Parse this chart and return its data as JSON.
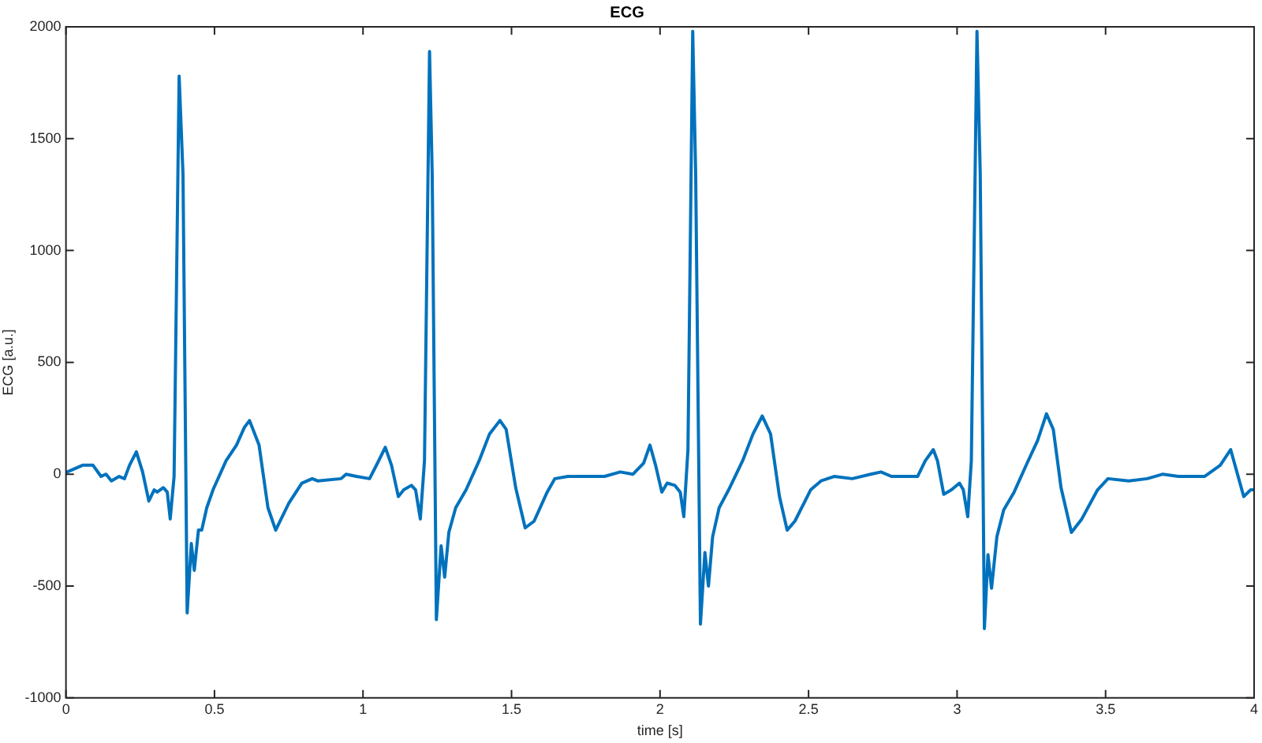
{
  "chart_data": {
    "type": "line",
    "title": "ECG",
    "xlabel": "time [s]",
    "ylabel": "ECG [a.u.]",
    "xlim": [
      0,
      4
    ],
    "xticks": [
      0,
      0.5,
      1,
      1.5,
      2,
      2.5,
      3,
      3.5,
      4
    ],
    "ylim": [
      -1000,
      2000
    ],
    "yticks": [
      -1000,
      -500,
      0,
      500,
      1000,
      1500,
      2000
    ],
    "grid": false,
    "legend": false,
    "marker": "none",
    "line_style": "solid",
    "series": [
      {
        "color": "#0072bd",
        "x": [
          0.004,
          0.056,
          0.091,
          0.118,
          0.135,
          0.153,
          0.179,
          0.197,
          0.214,
          0.237,
          0.258,
          0.279,
          0.297,
          0.307,
          0.328,
          0.341,
          0.351,
          0.364,
          0.381,
          0.394,
          0.408,
          0.422,
          0.432,
          0.446,
          0.457,
          0.474,
          0.495,
          0.539,
          0.574,
          0.601,
          0.618,
          0.65,
          0.68,
          0.706,
          0.75,
          0.794,
          0.829,
          0.847,
          0.926,
          0.943,
          0.978,
          1.022,
          1.049,
          1.075,
          1.096,
          1.119,
          1.137,
          1.163,
          1.177,
          1.193,
          1.207,
          1.224,
          1.233,
          1.247,
          1.263,
          1.275,
          1.289,
          1.312,
          1.347,
          1.391,
          1.426,
          1.461,
          1.482,
          1.514,
          1.546,
          1.576,
          1.62,
          1.646,
          1.69,
          1.743,
          1.813,
          1.866,
          1.909,
          1.945,
          1.966,
          1.985,
          2.006,
          2.024,
          2.05,
          2.068,
          2.08,
          2.094,
          2.11,
          2.12,
          2.136,
          2.151,
          2.163,
          2.177,
          2.199,
          2.231,
          2.278,
          2.313,
          2.344,
          2.372,
          2.402,
          2.428,
          2.454,
          2.507,
          2.542,
          2.586,
          2.647,
          2.709,
          2.744,
          2.779,
          2.867,
          2.893,
          2.92,
          2.934,
          2.955,
          2.981,
          3.008,
          3.021,
          3.036,
          3.048,
          3.067,
          3.078,
          3.092,
          3.104,
          3.116,
          3.134,
          3.157,
          3.192,
          3.236,
          3.271,
          3.301,
          3.324,
          3.35,
          3.385,
          3.42,
          3.473,
          3.508,
          3.578,
          3.64,
          3.693,
          3.745,
          3.833,
          3.886,
          3.921,
          3.942,
          3.965,
          3.988,
          4.0
        ],
        "values": [
          10,
          40,
          40,
          -10,
          0,
          -30,
          -10,
          -20,
          40,
          100,
          10,
          -120,
          -70,
          -80,
          -60,
          -80,
          -200,
          -10,
          1780,
          1340,
          -620,
          -310,
          -430,
          -250,
          -250,
          -150,
          -70,
          60,
          130,
          210,
          240,
          130,
          -150,
          -250,
          -130,
          -40,
          -20,
          -30,
          -20,
          0,
          -10,
          -20,
          50,
          120,
          40,
          -100,
          -70,
          -50,
          -70,
          -200,
          60,
          1890,
          1340,
          -650,
          -320,
          -460,
          -260,
          -150,
          -70,
          60,
          180,
          240,
          200,
          -60,
          -240,
          -210,
          -80,
          -20,
          -10,
          -10,
          -10,
          10,
          0,
          50,
          130,
          40,
          -80,
          -40,
          -50,
          -80,
          -190,
          110,
          1980,
          1340,
          -670,
          -350,
          -500,
          -280,
          -150,
          -70,
          60,
          180,
          260,
          180,
          -100,
          -250,
          -210,
          -70,
          -30,
          -10,
          -20,
          0,
          10,
          -10,
          -10,
          60,
          110,
          60,
          -90,
          -70,
          -40,
          -70,
          -190,
          60,
          1980,
          1340,
          -690,
          -360,
          -510,
          -280,
          -160,
          -80,
          50,
          150,
          270,
          200,
          -60,
          -260,
          -200,
          -70,
          -20,
          -30,
          -20,
          0,
          -10,
          -10,
          40,
          110,
          10,
          -100,
          -70,
          -70
        ]
      }
    ]
  }
}
